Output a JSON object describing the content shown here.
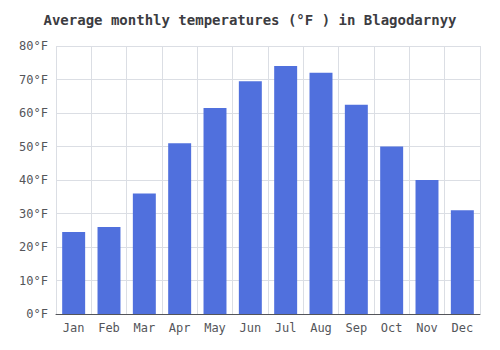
{
  "chart_data": {
    "type": "bar",
    "title": "Average monthly temperatures (°F ) in Blagodarnyy",
    "categories": [
      "Jan",
      "Feb",
      "Mar",
      "Apr",
      "May",
      "Jun",
      "Jul",
      "Aug",
      "Sep",
      "Oct",
      "Nov",
      "Dec"
    ],
    "values": [
      24.5,
      26.0,
      36.0,
      51.0,
      61.5,
      69.5,
      74.0,
      72.0,
      62.5,
      50.0,
      40.0,
      31.0
    ],
    "ylim": [
      0,
      80
    ],
    "yticks": [
      {
        "value": 0,
        "label": "0°F"
      },
      {
        "value": 10,
        "label": "10°F"
      },
      {
        "value": 20,
        "label": "20°F"
      },
      {
        "value": 30,
        "label": "30°F"
      },
      {
        "value": 40,
        "label": "40°F"
      },
      {
        "value": 50,
        "label": "50°F"
      },
      {
        "value": 60,
        "label": "60°F"
      },
      {
        "value": 70,
        "label": "70°F"
      },
      {
        "value": 80,
        "label": "80°F"
      }
    ],
    "grid": true
  }
}
